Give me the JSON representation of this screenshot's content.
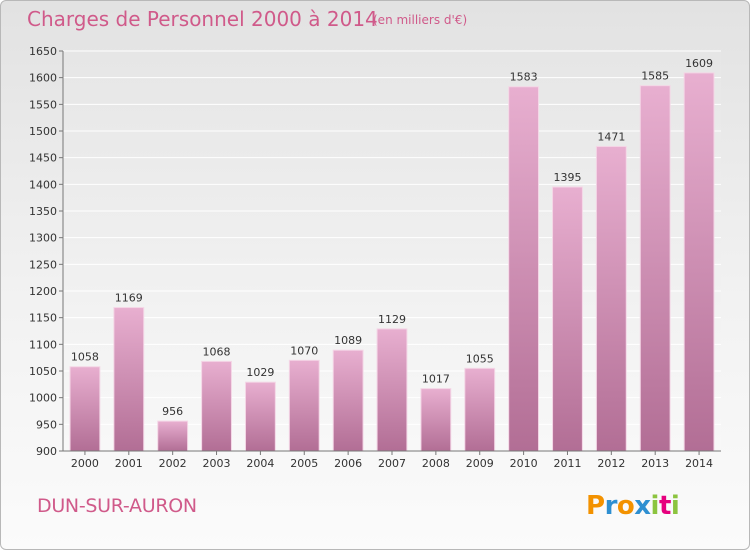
{
  "header": {
    "title": "Charges de Personnel 2000 à 2014",
    "subtitle": "(en milliers d'€)"
  },
  "footer": {
    "town": "DUN-SUR-AURON",
    "logo": "Proxiti"
  },
  "colors": {
    "accent": "#d05a8a",
    "bar_top": "#e8afd0",
    "bar_bottom": "#b26e95",
    "logo_letters": [
      "#f39200",
      "#2e8fd1",
      "#f39200",
      "#2e8fd1",
      "#8cc43f",
      "#e6007e",
      "#8cc43f"
    ]
  },
  "chart_data": {
    "type": "bar",
    "title": "Charges de Personnel 2000 à 2014",
    "xlabel": "",
    "ylabel": "",
    "categories": [
      "2000",
      "2001",
      "2002",
      "2003",
      "2004",
      "2005",
      "2006",
      "2007",
      "2008",
      "2009",
      "2010",
      "2011",
      "2012",
      "2013",
      "2014"
    ],
    "values": [
      1058,
      1169,
      956,
      1068,
      1029,
      1070,
      1089,
      1129,
      1017,
      1055,
      1583,
      1395,
      1471,
      1585,
      1609
    ],
    "ylim": [
      900,
      1650
    ],
    "ytick_step": 50,
    "grid": true
  }
}
